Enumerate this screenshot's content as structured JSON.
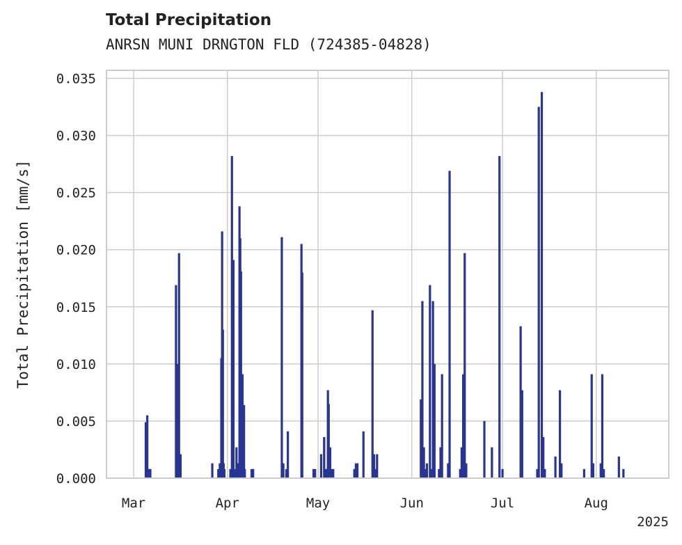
{
  "chart_data": {
    "type": "bar",
    "title": "Total Precipitation",
    "subtitle": "ANRSN MUNI DRNGTON FLD (724385-04828)",
    "xlabel": "",
    "ylabel": "Total Precipitation [mm/s]",
    "ylim": [
      0,
      0.0357
    ],
    "xlim": [
      "2025-02-20",
      "2025-08-25"
    ],
    "yticks": [
      "0.000",
      "0.005",
      "0.010",
      "0.015",
      "0.020",
      "0.025",
      "0.030",
      "0.035"
    ],
    "xticks": [
      {
        "date": "2025-03-01",
        "label": "Mar"
      },
      {
        "date": "2025-04-01",
        "label": "Apr"
      },
      {
        "date": "2025-05-01",
        "label": "May"
      },
      {
        "date": "2025-06-01",
        "label": "Jun"
      },
      {
        "date": "2025-07-01",
        "label": "Jul"
      },
      {
        "date": "2025-08-01",
        "label": "Aug"
      }
    ],
    "year_label": "2025",
    "grid": true,
    "bar_color": "#283593",
    "data": [
      [
        "2025-03-05T00:00",
        0.0049
      ],
      [
        "2025-03-05T12:00",
        0.0055
      ],
      [
        "2025-03-06T00:00",
        0.0008
      ],
      [
        "2025-03-06T12:00",
        0.0008
      ],
      [
        "2025-03-15T00:00",
        0.0169
      ],
      [
        "2025-03-15T12:00",
        0.01
      ],
      [
        "2025-03-15T18:00",
        0.0082
      ],
      [
        "2025-03-16T00:00",
        0.0197
      ],
      [
        "2025-03-16T12:00",
        0.0021
      ],
      [
        "2025-03-27T00:00",
        0.0013
      ],
      [
        "2025-03-29T00:00",
        0.0008
      ],
      [
        "2025-03-29T12:00",
        0.0013
      ],
      [
        "2025-03-30T00:00",
        0.0105
      ],
      [
        "2025-03-30T06:00",
        0.0216
      ],
      [
        "2025-03-30T12:00",
        0.013
      ],
      [
        "2025-03-30T18:00",
        0.0013
      ],
      [
        "2025-03-31T00:00",
        0.0008
      ],
      [
        "2025-04-02T00:00",
        0.0008
      ],
      [
        "2025-04-02T12:00",
        0.0282
      ],
      [
        "2025-04-03T00:00",
        0.0191
      ],
      [
        "2025-04-03T12:00",
        0.0008
      ],
      [
        "2025-04-04T00:00",
        0.0027
      ],
      [
        "2025-04-04T12:00",
        0.0013
      ],
      [
        "2025-04-05T00:00",
        0.0238
      ],
      [
        "2025-04-05T06:00",
        0.021
      ],
      [
        "2025-04-05T12:00",
        0.0181
      ],
      [
        "2025-04-05T18:00",
        0.0013
      ],
      [
        "2025-04-06T00:00",
        0.0091
      ],
      [
        "2025-04-06T12:00",
        0.0064
      ],
      [
        "2025-04-06T18:00",
        0.0008
      ],
      [
        "2025-04-09T00:00",
        0.0008
      ],
      [
        "2025-04-09T12:00",
        0.0008
      ],
      [
        "2025-04-19T00:00",
        0.0211
      ],
      [
        "2025-04-19T12:00",
        0.0013
      ],
      [
        "2025-04-20T12:00",
        0.0008
      ],
      [
        "2025-04-21T00:00",
        0.0041
      ],
      [
        "2025-04-25T12:00",
        0.0205
      ],
      [
        "2025-04-25T18:00",
        0.018
      ],
      [
        "2025-04-29T12:00",
        0.0008
      ],
      [
        "2025-04-30T00:00",
        0.0008
      ],
      [
        "2025-05-02T00:00",
        0.0021
      ],
      [
        "2025-05-03T00:00",
        0.0036
      ],
      [
        "2025-05-03T12:00",
        0.0008
      ],
      [
        "2025-05-04T00:00",
        0.0008
      ],
      [
        "2025-05-04T06:00",
        0.0077
      ],
      [
        "2025-05-04T12:00",
        0.0065
      ],
      [
        "2025-05-05T00:00",
        0.0027
      ],
      [
        "2025-05-05T12:00",
        0.0008
      ],
      [
        "2025-05-06T00:00",
        0.0008
      ],
      [
        "2025-05-13T00:00",
        0.0008
      ],
      [
        "2025-05-13T12:00",
        0.0013
      ],
      [
        "2025-05-14T00:00",
        0.0013
      ],
      [
        "2025-05-16T00:00",
        0.0041
      ],
      [
        "2025-05-19T00:00",
        0.0147
      ],
      [
        "2025-05-19T12:00",
        0.0021
      ],
      [
        "2025-05-20T00:00",
        0.0008
      ],
      [
        "2025-05-20T12:00",
        0.0021
      ],
      [
        "2025-06-04T00:00",
        0.0069
      ],
      [
        "2025-06-04T12:00",
        0.0155
      ],
      [
        "2025-06-05T00:00",
        0.0027
      ],
      [
        "2025-06-05T12:00",
        0.0008
      ],
      [
        "2025-06-06T00:00",
        0.0013
      ],
      [
        "2025-06-07T00:00",
        0.0169
      ],
      [
        "2025-06-07T12:00",
        0.0008
      ],
      [
        "2025-06-08T00:00",
        0.0155
      ],
      [
        "2025-06-08T12:00",
        0.01
      ],
      [
        "2025-06-10T00:00",
        0.0008
      ],
      [
        "2025-06-10T12:00",
        0.0027
      ],
      [
        "2025-06-11T00:00",
        0.0091
      ],
      [
        "2025-06-13T00:00",
        0.0013
      ],
      [
        "2025-06-13T12:00",
        0.0269
      ],
      [
        "2025-06-17T00:00",
        0.0008
      ],
      [
        "2025-06-17T12:00",
        0.0027
      ],
      [
        "2025-06-18T00:00",
        0.0091
      ],
      [
        "2025-06-18T12:00",
        0.0197
      ],
      [
        "2025-06-19T00:00",
        0.0013
      ],
      [
        "2025-06-25T00:00",
        0.005
      ],
      [
        "2025-06-27T12:00",
        0.0027
      ],
      [
        "2025-06-30T00:00",
        0.0282
      ],
      [
        "2025-07-01T00:00",
        0.0008
      ],
      [
        "2025-07-07T00:00",
        0.0133
      ],
      [
        "2025-07-07T12:00",
        0.0077
      ],
      [
        "2025-07-12T12:00",
        0.0008
      ],
      [
        "2025-07-13T00:00",
        0.0325
      ],
      [
        "2025-07-14T00:00",
        0.0338
      ],
      [
        "2025-07-14T12:00",
        0.0036
      ],
      [
        "2025-07-15T00:00",
        0.0008
      ],
      [
        "2025-07-18T12:00",
        0.0019
      ],
      [
        "2025-07-20T00:00",
        0.0077
      ],
      [
        "2025-07-20T12:00",
        0.0013
      ],
      [
        "2025-07-28T00:00",
        0.0008
      ],
      [
        "2025-07-30T12:00",
        0.0091
      ],
      [
        "2025-07-31T00:00",
        0.0013
      ],
      [
        "2025-08-02T12:00",
        0.0013
      ],
      [
        "2025-08-03T00:00",
        0.0091
      ],
      [
        "2025-08-03T12:00",
        0.0008
      ],
      [
        "2025-08-08T12:00",
        0.0019
      ],
      [
        "2025-08-10T00:00",
        0.0008
      ]
    ]
  }
}
